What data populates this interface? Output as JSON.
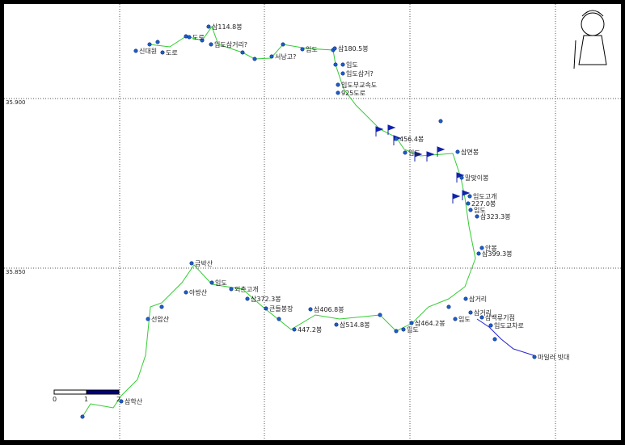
{
  "grid": {
    "lat_labels": [
      "35.900",
      "35.850"
    ]
  },
  "scale_bar": {
    "labels": [
      "0",
      "1",
      "2"
    ]
  },
  "waypoints": [
    {
      "label": "삼114.8봉"
    },
    {
      "label": "도로"
    },
    {
      "label": "신대원"
    },
    {
      "label": "도로"
    },
    {
      "label": "임도삼거리?"
    },
    {
      "label": "삼180.5봉"
    },
    {
      "label": "임도"
    },
    {
      "label": "서낭고?"
    },
    {
      "label": "임도"
    },
    {
      "label": "임도삼거?"
    },
    {
      "label": "임도부교속도"
    },
    {
      "label": "925도로"
    },
    {
      "label": "456.4봉"
    },
    {
      "label": "임도"
    },
    {
      "label": "삼면봉"
    },
    {
      "label": "말맞이봉"
    },
    {
      "label": "임도고개"
    },
    {
      "label": "227.0봉"
    },
    {
      "label": "임도"
    },
    {
      "label": "삼323.3봉"
    },
    {
      "label": "안봉"
    },
    {
      "label": "삼399.3봉"
    },
    {
      "label": "삼거리"
    },
    {
      "label": "삼거리"
    },
    {
      "label": "임도"
    },
    {
      "label": "삼백류기점"
    },
    {
      "label": "임도교차로"
    },
    {
      "label": "마일러 빗대"
    },
    {
      "label": "삼464.2봉"
    },
    {
      "label": "임도"
    },
    {
      "label": "삼514.8봉"
    },
    {
      "label": "삼406.8봉"
    },
    {
      "label": "447.2봉"
    },
    {
      "label": "큰들봉장"
    },
    {
      "label": "삼372.3봉"
    },
    {
      "label": "외촌고개"
    },
    {
      "label": "임도"
    },
    {
      "label": "아방산"
    },
    {
      "label": "금박산"
    },
    {
      "label": "선암산"
    },
    {
      "label": "삼학산"
    }
  ]
}
